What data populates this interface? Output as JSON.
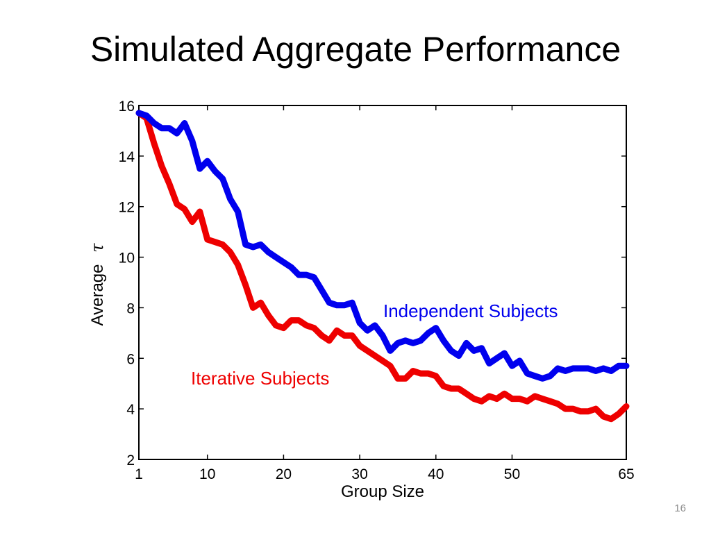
{
  "slide": {
    "title": "Simulated Aggregate Performance",
    "page_number": "16"
  },
  "colors": {
    "independent": "#0000ee",
    "iterative": "#ee0000",
    "axis": "#000000"
  },
  "chart_data": {
    "type": "line",
    "title": "",
    "xlabel": "Group Size",
    "ylabel_text": "Average",
    "ylabel_symbol": "τ",
    "xlim": [
      1,
      65
    ],
    "ylim": [
      2,
      16
    ],
    "xticks": [
      1,
      10,
      20,
      30,
      40,
      50,
      65
    ],
    "yticks": [
      2,
      4,
      6,
      8,
      10,
      12,
      14,
      16
    ],
    "grid": false,
    "legend": "inline labels",
    "x": [
      1,
      2,
      3,
      4,
      5,
      6,
      7,
      8,
      9,
      10,
      11,
      12,
      13,
      14,
      15,
      16,
      17,
      18,
      19,
      20,
      21,
      22,
      23,
      24,
      25,
      26,
      27,
      28,
      29,
      30,
      31,
      32,
      33,
      34,
      35,
      36,
      37,
      38,
      39,
      40,
      41,
      42,
      43,
      44,
      45,
      46,
      47,
      48,
      49,
      50,
      51,
      52,
      53,
      54,
      55,
      56,
      57,
      58,
      59,
      60,
      61,
      62,
      63,
      64,
      65
    ],
    "series": [
      {
        "name": "Independent Subjects",
        "label": "Independent Subjects",
        "values": [
          15.7,
          15.6,
          15.3,
          15.1,
          15.1,
          14.9,
          15.3,
          14.6,
          13.5,
          13.8,
          13.4,
          13.1,
          12.3,
          11.8,
          10.5,
          10.4,
          10.5,
          10.2,
          10.0,
          9.8,
          9.6,
          9.3,
          9.3,
          9.2,
          8.7,
          8.2,
          8.1,
          8.1,
          8.2,
          7.4,
          7.1,
          7.3,
          6.9,
          6.3,
          6.6,
          6.7,
          6.6,
          6.7,
          7.0,
          7.2,
          6.7,
          6.3,
          6.1,
          6.6,
          6.3,
          6.4,
          5.8,
          6.0,
          6.2,
          5.7,
          5.9,
          5.4,
          5.3,
          5.2,
          5.3,
          5.6,
          5.5,
          5.6,
          5.6,
          5.6,
          5.5,
          5.6,
          5.5,
          5.7,
          5.7
        ]
      },
      {
        "name": "Iterative Subjects",
        "label": "Iterative Subjects",
        "values": [
          15.7,
          15.5,
          14.5,
          13.6,
          12.9,
          12.1,
          11.9,
          11.4,
          11.8,
          10.7,
          10.6,
          10.5,
          10.2,
          9.7,
          8.9,
          8.0,
          8.2,
          7.7,
          7.3,
          7.2,
          7.5,
          7.5,
          7.3,
          7.2,
          6.9,
          6.7,
          7.1,
          6.9,
          6.9,
          6.5,
          6.3,
          6.1,
          5.9,
          5.7,
          5.2,
          5.2,
          5.5,
          5.4,
          5.4,
          5.3,
          4.9,
          4.8,
          4.8,
          4.6,
          4.4,
          4.3,
          4.5,
          4.4,
          4.6,
          4.4,
          4.4,
          4.3,
          4.5,
          4.4,
          4.3,
          4.2,
          4.0,
          4.0,
          3.9,
          3.9,
          4.0,
          3.7,
          3.6,
          3.8,
          4.1
        ]
      }
    ]
  }
}
